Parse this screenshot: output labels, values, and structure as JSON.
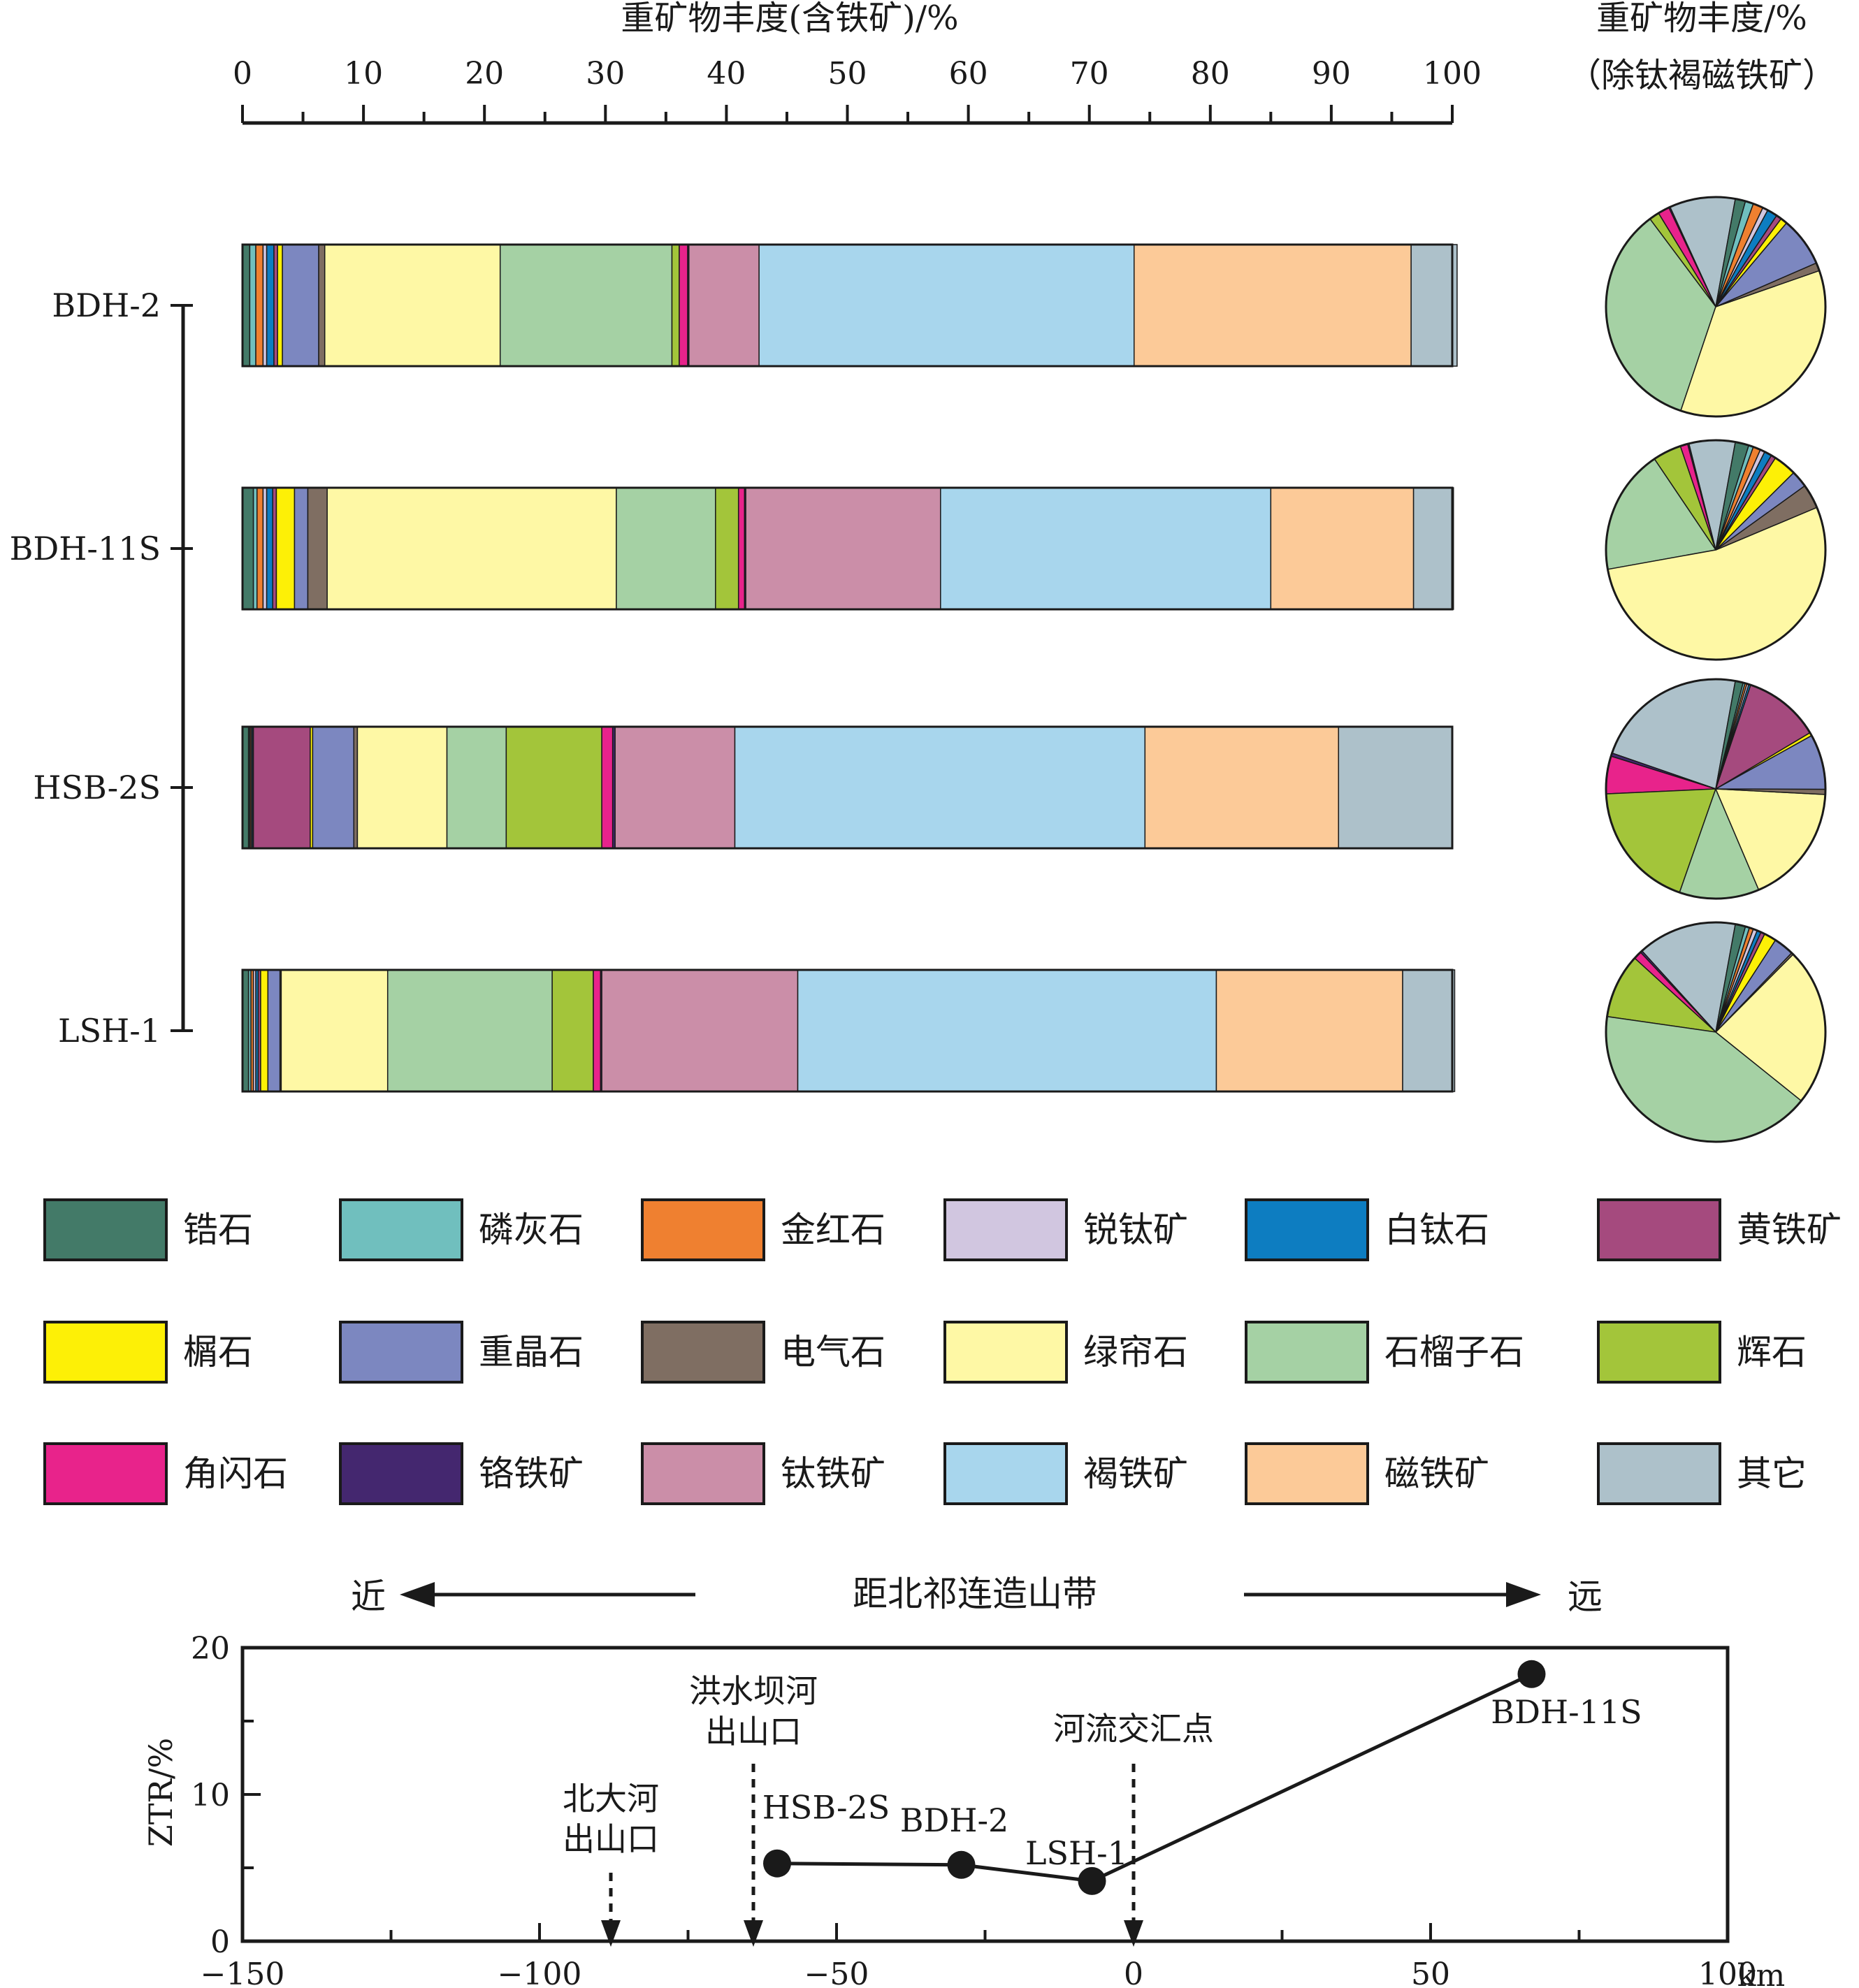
{
  "top_axis": {
    "title": "重矿物丰度(含铁矿)/%",
    "ticks": [
      0,
      10,
      20,
      30,
      40,
      50,
      60,
      70,
      80,
      90,
      100
    ]
  },
  "pie_title": {
    "line1": "重矿物丰度/%",
    "line2": "（除钛褐磁铁矿）"
  },
  "minerals": [
    {
      "key": "zircon",
      "label": "锆石",
      "color": "#437a68"
    },
    {
      "key": "apatite",
      "label": "磷灰石",
      "color": "#70bfbe"
    },
    {
      "key": "rutile",
      "label": "金红石",
      "color": "#ef8030"
    },
    {
      "key": "anatase",
      "label": "锐钛矿",
      "color": "#d1c6e0"
    },
    {
      "key": "leucoxene",
      "label": "白钛石",
      "color": "#0d7dc1"
    },
    {
      "key": "pyrite",
      "label": "黄铁矿",
      "color": "#a54a7e"
    },
    {
      "key": "sphene",
      "label": "榍石",
      "color": "#fdf006"
    },
    {
      "key": "barite",
      "label": "重晶石",
      "color": "#7c87c0"
    },
    {
      "key": "tourmaline",
      "label": "电气石",
      "color": "#7f6e62"
    },
    {
      "key": "epidote",
      "label": "绿帘石",
      "color": "#fef8a5"
    },
    {
      "key": "garnet",
      "label": "石榴子石",
      "color": "#a5d1a4"
    },
    {
      "key": "pyroxene",
      "label": "辉石",
      "color": "#a3c53a"
    },
    {
      "key": "amphibole",
      "label": "角闪石",
      "color": "#e8238b"
    },
    {
      "key": "chromite",
      "label": "铬铁矿",
      "color": "#44276f"
    },
    {
      "key": "ilmenite",
      "label": "钛铁矿",
      "color": "#cb8ea8"
    },
    {
      "key": "limonite",
      "label": "褐铁矿",
      "color": "#a8d6ed"
    },
    {
      "key": "magnetite",
      "label": "磁铁矿",
      "color": "#fcca98"
    },
    {
      "key": "other",
      "label": "其它",
      "color": "#adc1ca"
    }
  ],
  "samples_axis": [
    "BDH-2",
    "BDH-11S",
    "HSB-2S",
    "LSH-1"
  ],
  "chart_data": [
    {
      "type": "bar",
      "orientation": "horizontal",
      "stacked": true,
      "xlabel": "重矿物丰度(含铁矿)/%",
      "xlim": [
        0,
        100
      ],
      "categories": [
        "BDH-2",
        "BDH-11S",
        "HSB-2S",
        "LSH-1"
      ],
      "series": [
        {
          "name": "锆石",
          "values": [
            0.6,
            0.9,
            0.5,
            0.5
          ]
        },
        {
          "name": "磷灰石",
          "values": [
            0.5,
            0.3,
            0.1,
            0.2
          ]
        },
        {
          "name": "金红石",
          "values": [
            0.6,
            0.5,
            0.1,
            0.2
          ]
        },
        {
          "name": "锐钛矿",
          "values": [
            0.3,
            0.3,
            0.1,
            0.2
          ]
        },
        {
          "name": "白钛石",
          "values": [
            0.6,
            0.5,
            0.1,
            0.2
          ]
        },
        {
          "name": "黄铁矿",
          "values": [
            0.3,
            0.3,
            4.7,
            0.2
          ]
        },
        {
          "name": "榍石",
          "values": [
            0.4,
            1.5,
            0.2,
            0.6
          ]
        },
        {
          "name": "重晶石",
          "values": [
            3.0,
            1.1,
            3.4,
            1.0
          ]
        },
        {
          "name": "电气石",
          "values": [
            0.5,
            1.6,
            0.3,
            0.1
          ]
        },
        {
          "name": "绿帘石",
          "values": [
            14.5,
            23.9,
            7.4,
            8.8
          ]
        },
        {
          "name": "石榴子石",
          "values": [
            14.2,
            8.2,
            4.9,
            13.6
          ]
        },
        {
          "name": "辉石",
          "values": [
            0.6,
            1.9,
            7.9,
            3.4
          ]
        },
        {
          "name": "角闪石",
          "values": [
            0.7,
            0.5,
            0.9,
            0.6
          ]
        },
        {
          "name": "铬铁矿",
          "values": [
            0.1,
            0.1,
            0.2,
            0.1
          ]
        },
        {
          "name": "钛铁矿",
          "values": [
            5.8,
            16.1,
            9.9,
            16.2
          ]
        },
        {
          "name": "褐铁矿",
          "values": [
            31.0,
            27.3,
            33.9,
            34.6
          ]
        },
        {
          "name": "磁铁矿",
          "values": [
            22.9,
            11.8,
            16.0,
            15.4
          ]
        },
        {
          "name": "其它",
          "values": [
            3.8,
            3.3,
            9.4,
            4.3
          ]
        }
      ]
    },
    {
      "type": "pie",
      "title": "重矿物丰度/% （除钛褐磁铁矿）",
      "sample": "BDH-2",
      "slices": [
        {
          "name": "锆石",
          "value": 1.5
        },
        {
          "name": "磷灰石",
          "value": 1.2
        },
        {
          "name": "金红石",
          "value": 1.5
        },
        {
          "name": "锐钛矿",
          "value": 0.8
        },
        {
          "name": "白钛石",
          "value": 1.5
        },
        {
          "name": "黄铁矿",
          "value": 0.8
        },
        {
          "name": "榍石",
          "value": 1.0
        },
        {
          "name": "重晶石",
          "value": 7.3
        },
        {
          "name": "电气石",
          "value": 1.2
        },
        {
          "name": "绿帘石",
          "value": 35.5
        },
        {
          "name": "石榴子石",
          "value": 34.6
        },
        {
          "name": "辉石",
          "value": 1.5
        },
        {
          "name": "角闪石",
          "value": 1.7
        },
        {
          "name": "铬铁矿",
          "value": 0.2
        },
        {
          "name": "其它",
          "value": 9.7
        }
      ]
    },
    {
      "type": "pie",
      "title": "重矿物丰度/% （除钛褐磁铁矿）",
      "sample": "BDH-11S",
      "slices": [
        {
          "name": "锆石",
          "value": 2.0
        },
        {
          "name": "磷灰石",
          "value": 0.7
        },
        {
          "name": "金红石",
          "value": 1.1
        },
        {
          "name": "锐钛矿",
          "value": 0.7
        },
        {
          "name": "白钛石",
          "value": 1.1
        },
        {
          "name": "黄铁矿",
          "value": 0.7
        },
        {
          "name": "榍石",
          "value": 3.4
        },
        {
          "name": "重晶石",
          "value": 2.5
        },
        {
          "name": "电气石",
          "value": 3.6
        },
        {
          "name": "绿帘石",
          "value": 53.5
        },
        {
          "name": "石榴子石",
          "value": 18.4
        },
        {
          "name": "辉石",
          "value": 4.2
        },
        {
          "name": "角闪石",
          "value": 1.1
        },
        {
          "name": "铬铁矿",
          "value": 0.2
        },
        {
          "name": "其它",
          "value": 6.8
        }
      ]
    },
    {
      "type": "pie",
      "title": "重矿物丰度/% （除钛褐磁铁矿）",
      "sample": "HSB-2S",
      "slices": [
        {
          "name": "锆石",
          "value": 1.2
        },
        {
          "name": "磷灰石",
          "value": 0.3
        },
        {
          "name": "金红石",
          "value": 0.3
        },
        {
          "name": "锐钛矿",
          "value": 0.3
        },
        {
          "name": "白钛石",
          "value": 0.3
        },
        {
          "name": "黄铁矿",
          "value": 11.8
        },
        {
          "name": "榍石",
          "value": 0.5
        },
        {
          "name": "重晶石",
          "value": 8.5
        },
        {
          "name": "电气石",
          "value": 0.8
        },
        {
          "name": "绿帘石",
          "value": 18.6
        },
        {
          "name": "石榴子石",
          "value": 12.3
        },
        {
          "name": "辉石",
          "value": 19.8
        },
        {
          "name": "角闪石",
          "value": 5.8
        },
        {
          "name": "铬铁矿",
          "value": 0.5
        },
        {
          "name": "其它",
          "value": 23.6
        }
      ]
    },
    {
      "type": "pie",
      "title": "重矿物丰度/% （除钛褐磁铁矿）",
      "sample": "LSH-1",
      "slices": [
        {
          "name": "锆石",
          "value": 1.5
        },
        {
          "name": "磷灰石",
          "value": 0.6
        },
        {
          "name": "金红石",
          "value": 0.6
        },
        {
          "name": "锐钛矿",
          "value": 0.6
        },
        {
          "name": "白钛石",
          "value": 0.6
        },
        {
          "name": "黄铁矿",
          "value": 0.6
        },
        {
          "name": "榍石",
          "value": 1.8
        },
        {
          "name": "重晶石",
          "value": 3.0
        },
        {
          "name": "电气石",
          "value": 0.3
        },
        {
          "name": "绿帘石",
          "value": 23.3
        },
        {
          "name": "石榴子石",
          "value": 41.5
        },
        {
          "name": "辉石",
          "value": 9.5
        },
        {
          "name": "角闪石",
          "value": 1.2
        },
        {
          "name": "铬铁矿",
          "value": 0.3
        },
        {
          "name": "其它",
          "value": 14.6
        }
      ]
    },
    {
      "type": "line",
      "ylabel": "ZTR/%",
      "xlim": [
        -150,
        100
      ],
      "ylim": [
        0,
        20
      ],
      "x_unit": "km",
      "xticks": [
        -150,
        -100,
        -50,
        0,
        50,
        100
      ],
      "yticks": [
        0,
        10,
        20
      ],
      "series": [
        {
          "points": [
            {
              "label": "HSB-2S",
              "x": -60,
              "y": 5.3
            },
            {
              "label": "BDH-2",
              "x": -29,
              "y": 5.2
            },
            {
              "label": "LSH-1",
              "x": -7,
              "y": 4.1
            },
            {
              "label": "BDH-11S",
              "x": 67,
              "y": 18.2
            }
          ]
        }
      ],
      "annotations": [
        {
          "lines": [
            "北大河",
            "出山口"
          ],
          "x": -88
        },
        {
          "lines": [
            "洪水坝河",
            "出山口"
          ],
          "x": -64
        },
        {
          "lines": [
            "河流交汇点"
          ],
          "x": 0
        }
      ]
    }
  ],
  "direction": {
    "near": "近",
    "far": "远",
    "title": "距北祁连造山带"
  },
  "ztr": {
    "ylabel": "ZTR/%",
    "unit": "km"
  }
}
